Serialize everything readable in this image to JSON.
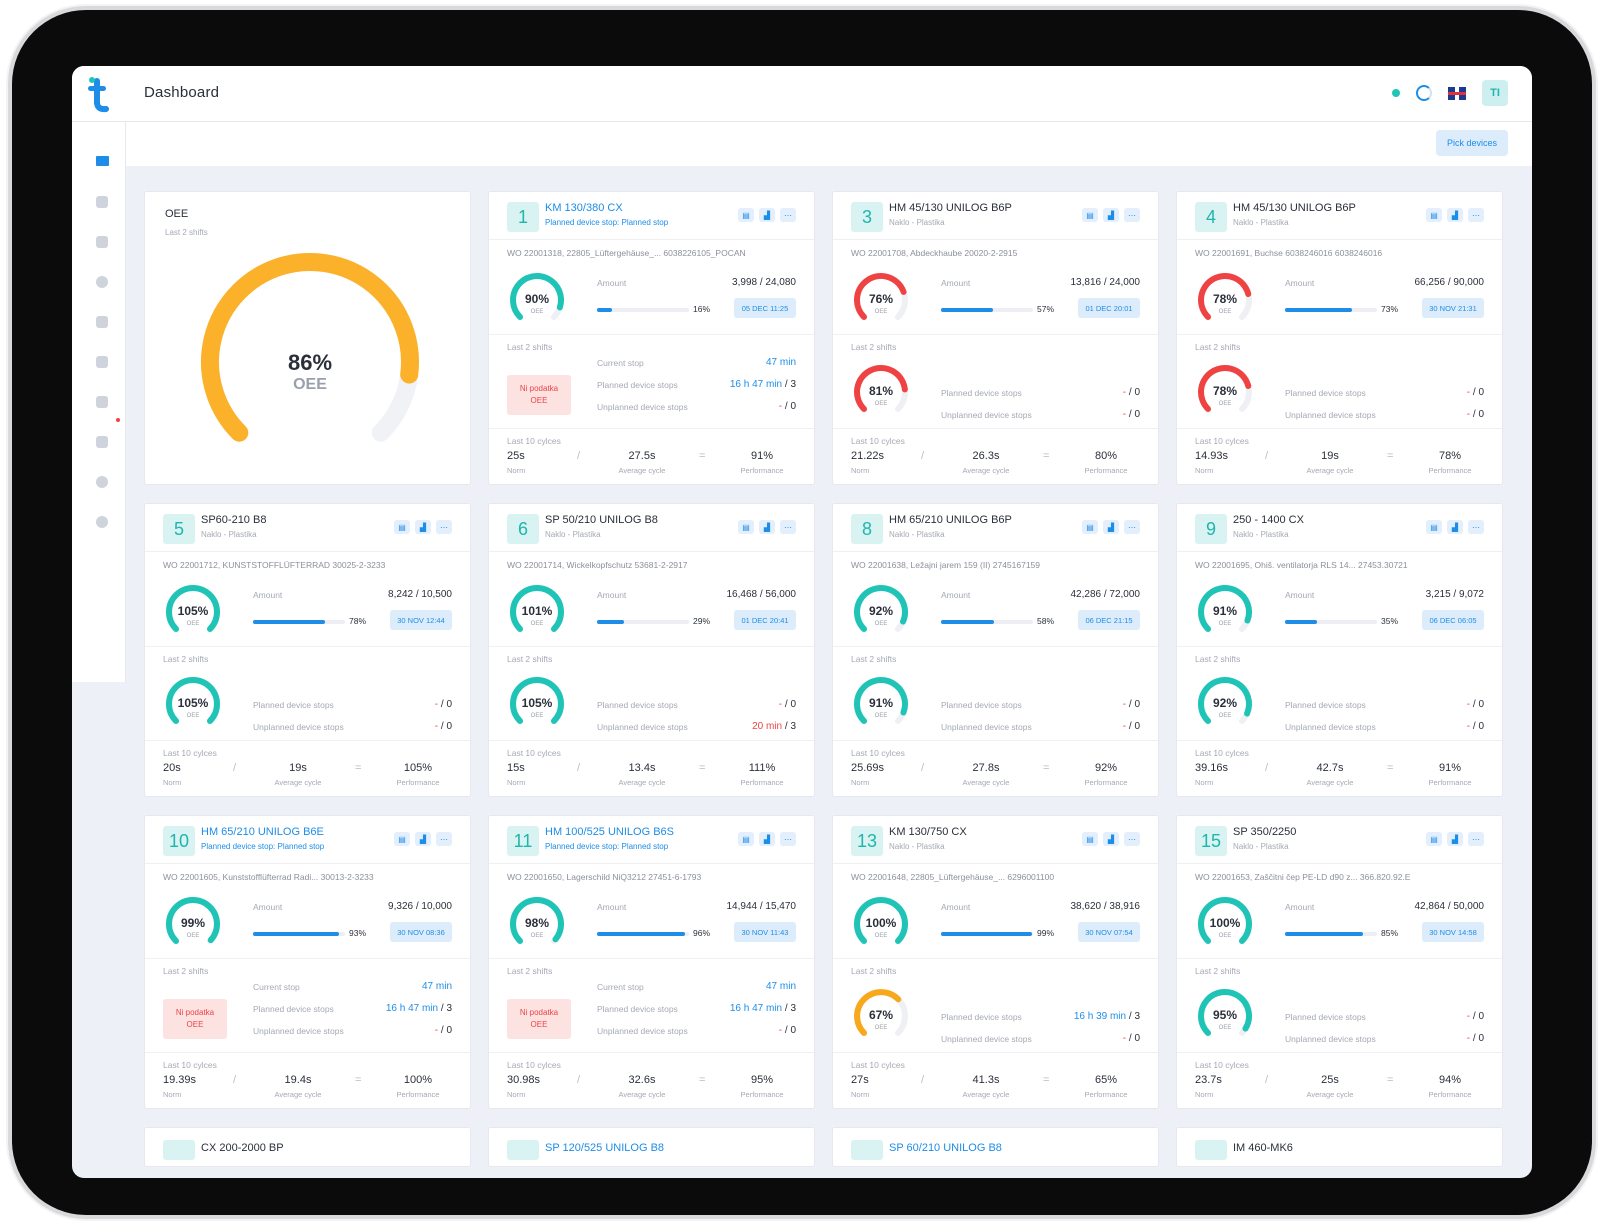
{
  "header": {
    "title": "Dashboard",
    "avatar": "TI",
    "pick_devices": "Pick devices"
  },
  "oee": {
    "title": "OEE",
    "subtitle": "Last 2 shifts",
    "value": "86%",
    "label": "OEE",
    "fraction": 0.86
  },
  "labels": {
    "amount": "Amount",
    "last2": "Last 2 shifts",
    "last10": "Last 10 cylces",
    "current_stop": "Current stop",
    "planned": "Planned device stops",
    "unplanned": "Unplanned device stops",
    "norm": "Norm",
    "avg": "Average cycle",
    "perf": "Performance",
    "oee": "OEE",
    "badge1": "Ni podatka",
    "badge2": "OEE"
  },
  "cards": [
    {
      "num": "1",
      "name": "KM 130/380 CX",
      "sub": "Planned device stop: Planned stop",
      "alert": true,
      "wo": "WO 22001318, 22805_Lüftergehäuse_...  6038226105_POCAN",
      "oee": "90%",
      "oee_f": 0.9,
      "amount": "3,998 / 24,080",
      "bar_f": 0.16,
      "bar_pct": "16%",
      "date": "05 DEC 11:25",
      "shift_oee": null,
      "current_stop": "47 min",
      "planned_v": "16 h 47 min",
      "planned_n": "3",
      "unplanned_v": "-",
      "unplanned_n": "0",
      "norm": "25s",
      "avg": "27.5s",
      "perf": "91%"
    },
    {
      "num": "3",
      "name": "HM 45/130 UNILOG B6P",
      "sub": "Naklo - Plastika",
      "alert": false,
      "wo": "WO 22001708, Abdeckhaube 20020-2-2915",
      "oee": "76%",
      "oee_f": 0.76,
      "amount": "13,816 / 24,000",
      "bar_f": 0.57,
      "bar_pct": "57%",
      "date": "01 DEC 20:01",
      "shift_oee": "81%",
      "shift_f": 0.81,
      "planned_v": "-",
      "planned_n": "0",
      "unplanned_v": "-",
      "unplanned_n": "0",
      "norm": "21.22s",
      "avg": "26.3s",
      "perf": "80%"
    },
    {
      "num": "4",
      "name": "HM 45/130 UNILOG B6P",
      "sub": "Naklo - Plastika",
      "alert": false,
      "wo": "WO 22001691, Buchse 6038246016 6038246016",
      "oee": "78%",
      "oee_f": 0.78,
      "amount": "66,256 / 90,000",
      "bar_f": 0.73,
      "bar_pct": "73%",
      "date": "30 NOV 21:31",
      "shift_oee": "78%",
      "shift_f": 0.78,
      "planned_v": "-",
      "planned_n": "0",
      "unplanned_v": "-",
      "unplanned_n": "0",
      "norm": "14.93s",
      "avg": "19s",
      "perf": "78%"
    },
    {
      "num": "5",
      "name": "SP60-210 B8",
      "sub": "Naklo - Plastika",
      "alert": false,
      "wo": "WO 22001712, KUNSTSTOFFLÜFTERRAD 30025-2-3233",
      "oee": "105%",
      "oee_f": 1.0,
      "amount": "8,242 / 10,500",
      "bar_f": 0.78,
      "bar_pct": "78%",
      "date": "30 NOV 12:44",
      "shift_oee": "105%",
      "shift_f": 1.0,
      "planned_v": "-",
      "planned_n": "0",
      "unplanned_v": "-",
      "unplanned_n": "0",
      "norm": "20s",
      "avg": "19s",
      "perf": "105%"
    },
    {
      "num": "6",
      "name": "SP 50/210 UNILOG B8",
      "sub": "Naklo - Plastika",
      "alert": false,
      "wo": "WO 22001714, Wickelkopfschutz 53681-2-2917",
      "oee": "101%",
      "oee_f": 1.0,
      "amount": "16,468 / 56,000",
      "bar_f": 0.29,
      "bar_pct": "29%",
      "date": "01 DEC 20:41",
      "shift_oee": "105%",
      "shift_f": 1.0,
      "planned_v": "-",
      "planned_n": "0",
      "unplanned_v": "20 min",
      "unplanned_n": "3",
      "unplanned_red": true,
      "norm": "15s",
      "avg": "13.4s",
      "perf": "111%"
    },
    {
      "num": "8",
      "name": "HM 65/210 UNILOG B6P",
      "sub": "Naklo - Plastika",
      "alert": false,
      "wo": "WO 22001638, Ležajni jarem 159 (II) 2745167159",
      "oee": "92%",
      "oee_f": 0.92,
      "amount": "42,286 / 72,000",
      "bar_f": 0.58,
      "bar_pct": "58%",
      "date": "06 DEC 21:15",
      "shift_oee": "91%",
      "shift_f": 0.91,
      "planned_v": "-",
      "planned_n": "0",
      "unplanned_v": "-",
      "unplanned_n": "0",
      "norm": "25.69s",
      "avg": "27.8s",
      "perf": "92%"
    },
    {
      "num": "9",
      "name": "250 - 1400 CX",
      "sub": "Naklo - Plastika",
      "alert": false,
      "wo": "WO 22001695, Ohiš. ventilatorja RLS 14...  27453.30721",
      "oee": "91%",
      "oee_f": 0.91,
      "amount": "3,215 / 9,072",
      "bar_f": 0.35,
      "bar_pct": "35%",
      "date": "06 DEC 06:05",
      "shift_oee": "92%",
      "shift_f": 0.92,
      "planned_v": "-",
      "planned_n": "0",
      "unplanned_v": "-",
      "unplanned_n": "0",
      "norm": "39.16s",
      "avg": "42.7s",
      "perf": "91%"
    },
    {
      "num": "10",
      "name": "HM 65/210 UNILOG B6E",
      "sub": "Planned device stop: Planned stop",
      "alert": true,
      "wo": "WO 22001605, Kunststofflüfterrad Radi...  30013-2-3233",
      "oee": "99%",
      "oee_f": 0.99,
      "amount": "9,326 / 10,000",
      "bar_f": 0.93,
      "bar_pct": "93%",
      "date": "30 NOV 08:36",
      "shift_oee": null,
      "current_stop": "47 min",
      "planned_v": "16 h 47 min",
      "planned_n": "3",
      "unplanned_v": "-",
      "unplanned_n": "0",
      "norm": "19.39s",
      "avg": "19.4s",
      "perf": "100%"
    },
    {
      "num": "11",
      "name": "HM 100/525 UNILOG B6S",
      "sub": "Planned device stop: Planned stop",
      "alert": true,
      "wo": "WO 22001650, Lagerschild NiQ3212 27451-6-1793",
      "oee": "98%",
      "oee_f": 0.98,
      "amount": "14,944 / 15,470",
      "bar_f": 0.96,
      "bar_pct": "96%",
      "date": "30 NOV 11:43",
      "shift_oee": null,
      "current_stop": "47 min",
      "planned_v": "16 h 47 min",
      "planned_n": "3",
      "unplanned_v": "-",
      "unplanned_n": "0",
      "norm": "30.98s",
      "avg": "32.6s",
      "perf": "95%"
    },
    {
      "num": "13",
      "name": "KM 130/750 CX",
      "sub": "Naklo - Plastika",
      "alert": false,
      "wo": "WO 22001648, 22805_Lüftergehäuse_...  6296001100",
      "oee": "100%",
      "oee_f": 1.0,
      "amount": "38,620 / 38,916",
      "bar_f": 0.99,
      "bar_pct": "99%",
      "date": "30 NOV 07:54",
      "shift_oee": "67%",
      "shift_f": 0.67,
      "planned_v": "16 h 39 min",
      "planned_n": "3",
      "unplanned_v": "-",
      "unplanned_n": "0",
      "norm": "27s",
      "avg": "41.3s",
      "perf": "65%"
    },
    {
      "num": "15",
      "name": "SP 350/2250",
      "sub": "Naklo - Plastika",
      "alert": false,
      "wo": "WO 22001653, Zaščitni čep PE-LD d90 z...  366.820.92.E",
      "oee": "100%",
      "oee_f": 1.0,
      "amount": "42,864 / 50,000",
      "bar_f": 0.85,
      "bar_pct": "85%",
      "date": "30 NOV 14:58",
      "shift_oee": "95%",
      "shift_f": 0.95,
      "planned_v": "-",
      "planned_n": "0",
      "unplanned_v": "-",
      "unplanned_n": "0",
      "norm": "23.7s",
      "avg": "25s",
      "perf": "94%"
    }
  ],
  "partial": [
    "CX 200-2000 BP",
    "SP 120/525 UNILOG B8",
    "SP 60/210 UNILOG B8",
    "IM 460-MK6"
  ],
  "colors": {
    "accent": "#1d8de8",
    "teal": "#20c4b6",
    "red": "#ef4343",
    "amber": "#fbb12a",
    "orange": "#f7a81b"
  }
}
